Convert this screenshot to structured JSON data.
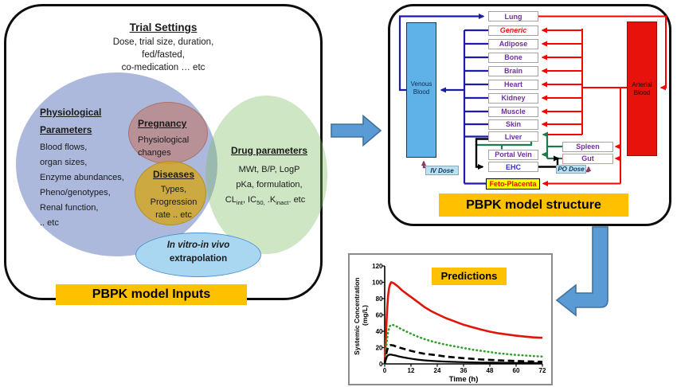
{
  "left_panel": {
    "trial": {
      "title": "Trial Settings",
      "lines": [
        "Dose, trial size, duration,",
        "fed/fasted,",
        "co-medication  … etc"
      ]
    },
    "physiological": {
      "heading": [
        "Physiological",
        "Parameters"
      ],
      "items": [
        "Blood flows,",
        "organ sizes,",
        "Enzyme abundances,",
        "Pheno/genotypes,",
        "Renal function,",
        ".. etc"
      ]
    },
    "pregnancy": {
      "heading": "Pregnancy",
      "lines": [
        "Physiological",
        "changes"
      ]
    },
    "diseases": {
      "heading": "Diseases",
      "lines": [
        "Types,",
        "Progression",
        "rate .. etc"
      ]
    },
    "drug": {
      "heading": "Drug parameters",
      "lines": [
        "MWt, B/P, LogP",
        "pKa, formulation,"
      ],
      "line3_parts": [
        {
          "t": "CL"
        },
        {
          "t": "int",
          "sub": true
        },
        {
          "t": ", IC"
        },
        {
          "t": "50,",
          "sub": true
        },
        {
          "t": " .K"
        },
        {
          "t": "inact",
          "sub": true
        },
        {
          "t": ". etc"
        }
      ]
    },
    "ivive": {
      "lines": [
        "In vitro-in vivo",
        "extrapolation"
      ]
    },
    "banner": "PBPK model Inputs"
  },
  "right_panel": {
    "venous_blood": "Venous\nBlood",
    "arterial_blood": "Arterial\nBlood",
    "organs": [
      "Lung",
      "Generic",
      "Adipose",
      "Bone",
      "Brain",
      "Heart",
      "Kidney",
      "Muscle",
      "Skin",
      "Liver",
      "Portal Vein",
      "EHC"
    ],
    "spleen": "Spleen",
    "gut": "Gut",
    "feto_placenta": "Feto-Placenta",
    "iv_dose": "IV Dose",
    "po_dose": "PO Dose",
    "banner": "PBPK model structure"
  },
  "chart_data": {
    "type": "line",
    "title": "Predictions",
    "xlabel": "Time (h)",
    "ylabel": "Systemic Concentration (mg/L)",
    "ylabel_lines": [
      "Systemic Concentration",
      "(mg/L)"
    ],
    "xlim": [
      0,
      72
    ],
    "ylim": [
      0,
      120
    ],
    "xticks": [
      0,
      12,
      24,
      36,
      48,
      60,
      72
    ],
    "yticks": [
      0,
      20,
      40,
      60,
      80,
      100,
      120
    ],
    "grid": false,
    "legend": "none",
    "series": [
      {
        "id": "red-solid",
        "color": "#DE1508",
        "dash": "",
        "points": [
          [
            0,
            0
          ],
          [
            0.5,
            30
          ],
          [
            1,
            62
          ],
          [
            1.5,
            82
          ],
          [
            2,
            93
          ],
          [
            2.5,
            98
          ],
          [
            3,
            100
          ],
          [
            4,
            99
          ],
          [
            5,
            97
          ],
          [
            6,
            95
          ],
          [
            8,
            90
          ],
          [
            10,
            86
          ],
          [
            12,
            82
          ],
          [
            15,
            76
          ],
          [
            18,
            70
          ],
          [
            21,
            65
          ],
          [
            24,
            61
          ],
          [
            28,
            56
          ],
          [
            32,
            52
          ],
          [
            36,
            48
          ],
          [
            40,
            45
          ],
          [
            44,
            42
          ],
          [
            48,
            39.5
          ],
          [
            52,
            37.5
          ],
          [
            56,
            36
          ],
          [
            60,
            34.5
          ],
          [
            64,
            33.5
          ],
          [
            68,
            32.5
          ],
          [
            72,
            32
          ]
        ]
      },
      {
        "id": "green-dotted",
        "color": "#2FA12B",
        "dash": "0.6 4.2",
        "points": [
          [
            0,
            0
          ],
          [
            0.5,
            14
          ],
          [
            1,
            29
          ],
          [
            1.5,
            38
          ],
          [
            2,
            44
          ],
          [
            2.5,
            47
          ],
          [
            3,
            48
          ],
          [
            4,
            47.5
          ],
          [
            5,
            46.5
          ],
          [
            6,
            45
          ],
          [
            8,
            42
          ],
          [
            10,
            39.5
          ],
          [
            12,
            37
          ],
          [
            15,
            33.5
          ],
          [
            18,
            30.5
          ],
          [
            21,
            28
          ],
          [
            24,
            26
          ],
          [
            28,
            23.5
          ],
          [
            32,
            21.5
          ],
          [
            36,
            19.5
          ],
          [
            40,
            17.5
          ],
          [
            44,
            16
          ],
          [
            48,
            14.5
          ],
          [
            52,
            13
          ],
          [
            56,
            12
          ],
          [
            60,
            11
          ],
          [
            64,
            10.3
          ],
          [
            68,
            9.6
          ],
          [
            72,
            9
          ]
        ]
      },
      {
        "id": "black-dashed",
        "color": "#000000",
        "dash": "8 4.5",
        "points": [
          [
            0,
            0
          ],
          [
            0.5,
            9
          ],
          [
            1,
            16
          ],
          [
            1.5,
            20
          ],
          [
            2,
            22.5
          ],
          [
            2.5,
            23
          ],
          [
            3,
            23
          ],
          [
            4,
            22.5
          ],
          [
            5,
            21.5
          ],
          [
            6,
            20.5
          ],
          [
            8,
            19
          ],
          [
            10,
            17.5
          ],
          [
            12,
            16
          ],
          [
            15,
            14
          ],
          [
            18,
            12.5
          ],
          [
            21,
            11.5
          ],
          [
            24,
            10.5
          ],
          [
            28,
            9
          ],
          [
            32,
            8
          ],
          [
            36,
            7
          ],
          [
            40,
            6.2
          ],
          [
            44,
            5.5
          ],
          [
            48,
            5
          ],
          [
            52,
            4.4
          ],
          [
            56,
            4
          ],
          [
            60,
            3.6
          ],
          [
            64,
            3.2
          ],
          [
            68,
            2.9
          ],
          [
            72,
            2.6
          ]
        ]
      },
      {
        "id": "black-solid",
        "color": "#000000",
        "dash": "",
        "points": [
          [
            0,
            0
          ],
          [
            0.5,
            5
          ],
          [
            1,
            9
          ],
          [
            1.5,
            10.5
          ],
          [
            2,
            11.2
          ],
          [
            2.5,
            11.4
          ],
          [
            3,
            11.3
          ],
          [
            4,
            10.8
          ],
          [
            5,
            10.2
          ],
          [
            6,
            9.5
          ],
          [
            8,
            8.3
          ],
          [
            10,
            7.3
          ],
          [
            12,
            6.4
          ],
          [
            15,
            5.3
          ],
          [
            18,
            4.4
          ],
          [
            21,
            3.8
          ],
          [
            24,
            3.3
          ],
          [
            28,
            2.8
          ],
          [
            32,
            2.4
          ],
          [
            36,
            2.1
          ],
          [
            40,
            1.9
          ],
          [
            44,
            1.7
          ],
          [
            48,
            1.6
          ],
          [
            52,
            1.5
          ],
          [
            56,
            1.4
          ],
          [
            60,
            1.3
          ],
          [
            64,
            1.25
          ],
          [
            68,
            1.2
          ],
          [
            72,
            1.15
          ]
        ]
      }
    ]
  },
  "colors": {
    "banner": "#FFC000",
    "venous_fill": "#5FB2E8",
    "arterial_fill": "#E8120C",
    "organ_text": "#7030A0",
    "generic_text": "#E8100C",
    "ehc_text": "#3333CC",
    "feto_fill": "#FFFF00",
    "feto_text": "#FF0000",
    "venous_line": "#1C1CA8",
    "arterial_line": "#FF0000",
    "portal_line": "#1D7A50",
    "ehc_line": "#000000",
    "dose_arrow": "#8E3A62",
    "block_arrow": "#5B9BD5"
  }
}
